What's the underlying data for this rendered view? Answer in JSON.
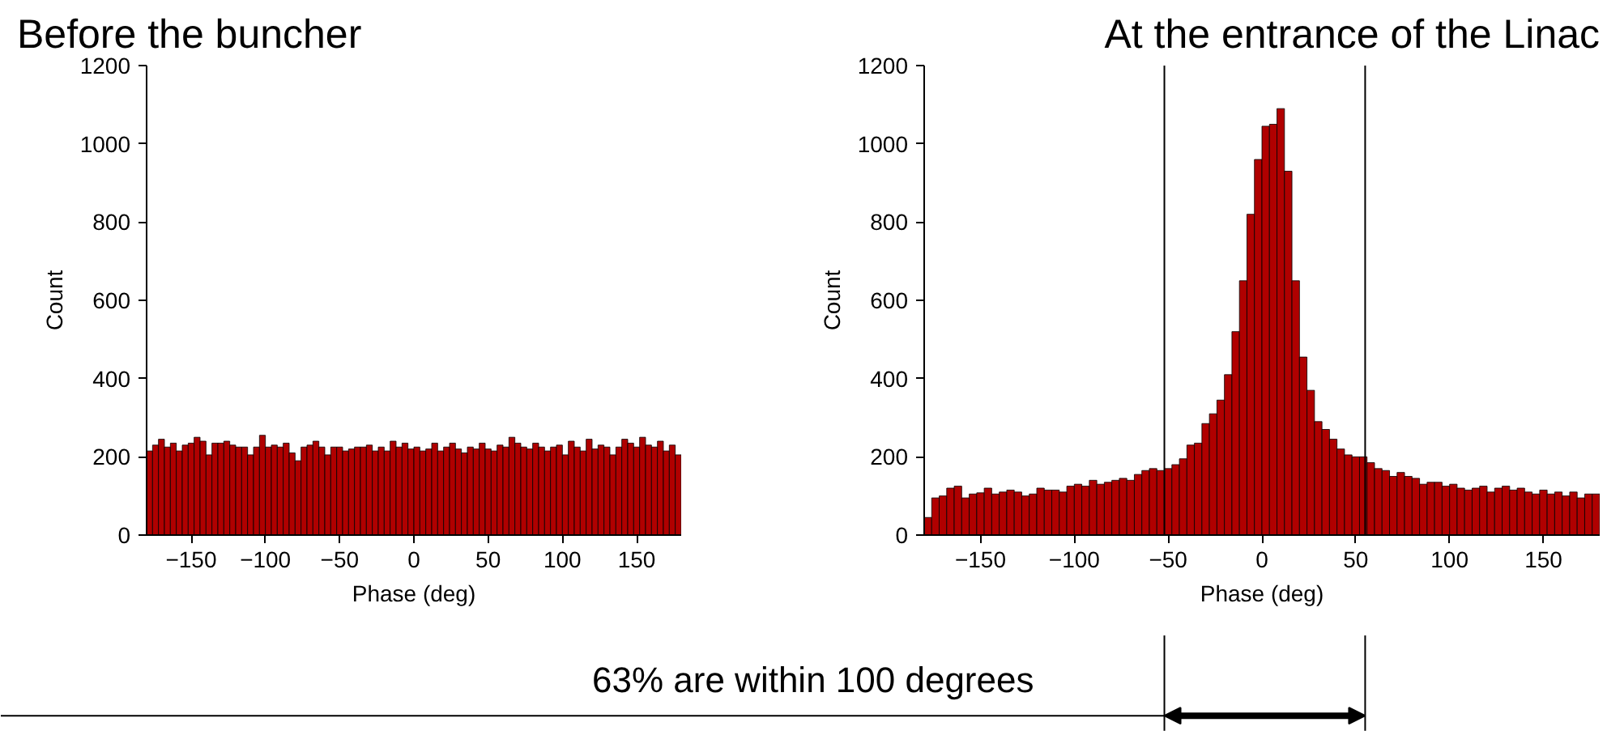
{
  "chart_data": [
    {
      "type": "histogram",
      "title": "Before the buncher",
      "xlabel": "Phase (deg)",
      "ylabel": "Count",
      "color": "#b00000",
      "bins": [
        -180,
        -176,
        -172,
        -168,
        -164,
        -160,
        -156,
        -152,
        -148,
        -144,
        -140,
        -136,
        -132,
        -128,
        -124,
        -120,
        -116,
        -112,
        -108,
        -104,
        -100,
        -96,
        -92,
        -88,
        -84,
        -80,
        -76,
        -72,
        -68,
        -64,
        -60,
        -56,
        -52,
        -48,
        -44,
        -40,
        -36,
        -32,
        -28,
        -24,
        -20,
        -16,
        -12,
        -8,
        -4,
        0,
        4,
        8,
        12,
        16,
        20,
        24,
        28,
        32,
        36,
        40,
        44,
        48,
        52,
        56,
        60,
        64,
        68,
        72,
        76,
        80,
        84,
        88,
        92,
        96,
        100,
        104,
        108,
        112,
        116,
        120,
        124,
        128,
        132,
        136,
        140,
        144,
        148,
        152,
        156,
        160,
        164,
        168,
        172,
        176,
        180
      ],
      "values": [
        215,
        230,
        245,
        225,
        235,
        215,
        230,
        235,
        250,
        240,
        205,
        235,
        235,
        240,
        230,
        225,
        225,
        205,
        225,
        255,
        225,
        230,
        225,
        235,
        210,
        190,
        225,
        230,
        240,
        225,
        205,
        225,
        225,
        215,
        220,
        225,
        225,
        230,
        215,
        225,
        215,
        240,
        225,
        235,
        220,
        225,
        215,
        220,
        235,
        215,
        225,
        235,
        220,
        210,
        225,
        220,
        235,
        220,
        215,
        230,
        225,
        250,
        235,
        225,
        220,
        235,
        225,
        215,
        225,
        230,
        205,
        240,
        225,
        215,
        245,
        220,
        230,
        225,
        205,
        225,
        245,
        235,
        225,
        250,
        230,
        225,
        240,
        215,
        230,
        205
      ],
      "xlim": [
        -180,
        180
      ],
      "ylim": [
        0,
        1200
      ],
      "xticks": [
        -150,
        -100,
        -50,
        0,
        50,
        100,
        150
      ],
      "yticks": [
        0,
        200,
        400,
        600,
        800,
        1000,
        1200
      ],
      "grid": false
    },
    {
      "type": "histogram",
      "title": "At the entrance of the Linac",
      "xlabel": "Phase (deg)",
      "ylabel": "Count",
      "color": "#b00000",
      "bins": [
        -180,
        -176,
        -172,
        -168,
        -164,
        -160,
        -156,
        -152,
        -148,
        -144,
        -140,
        -136,
        -132,
        -128,
        -124,
        -120,
        -116,
        -112,
        -108,
        -104,
        -100,
        -96,
        -92,
        -88,
        -84,
        -80,
        -76,
        -72,
        -68,
        -64,
        -60,
        -56,
        -52,
        -48,
        -44,
        -40,
        -36,
        -32,
        -28,
        -24,
        -20,
        -16,
        -12,
        -8,
        -4,
        0,
        4,
        8,
        12,
        16,
        20,
        24,
        28,
        32,
        36,
        40,
        44,
        48,
        52,
        56,
        60,
        64,
        68,
        72,
        76,
        80,
        84,
        88,
        92,
        96,
        100,
        104,
        108,
        112,
        116,
        120,
        124,
        128,
        132,
        136,
        140,
        144,
        148,
        152,
        156,
        160,
        164,
        168,
        172,
        176,
        180
      ],
      "values": [
        45,
        95,
        100,
        120,
        125,
        95,
        105,
        108,
        120,
        105,
        110,
        115,
        110,
        100,
        105,
        120,
        115,
        115,
        110,
        125,
        130,
        125,
        140,
        130,
        135,
        140,
        145,
        140,
        155,
        165,
        170,
        165,
        170,
        180,
        195,
        230,
        235,
        285,
        310,
        345,
        410,
        520,
        650,
        820,
        960,
        1045,
        1050,
        1090,
        930,
        650,
        455,
        370,
        290,
        270,
        245,
        220,
        205,
        200,
        200,
        185,
        170,
        165,
        150,
        160,
        150,
        145,
        130,
        135,
        135,
        125,
        130,
        120,
        115,
        120,
        125,
        110,
        120,
        125,
        115,
        120,
        110,
        105,
        115,
        105,
        110,
        100,
        110,
        95,
        105,
        105
      ],
      "xlim": [
        -180,
        180
      ],
      "ylim": [
        0,
        1200
      ],
      "xticks": [
        -150,
        -100,
        -50,
        0,
        50,
        100,
        150
      ],
      "yticks": [
        0,
        200,
        400,
        600,
        800,
        1000,
        1200
      ],
      "grid": false,
      "ref_lines": [
        {
          "axis": "x",
          "value": -52,
          "color": "#000000"
        },
        {
          "axis": "x",
          "value": 55,
          "color": "#000000"
        }
      ],
      "annotations": [
        "63% are within 100 degrees"
      ]
    }
  ]
}
